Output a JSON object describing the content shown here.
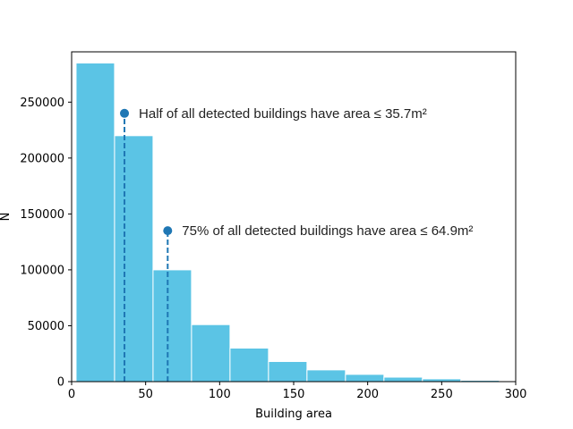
{
  "chart_data": {
    "type": "bar",
    "xlabel": "Building area",
    "ylabel": "N",
    "xlim": [
      0,
      300
    ],
    "ylim": [
      0,
      295000
    ],
    "bin_width": 26,
    "bins": [
      {
        "x0": 3,
        "x1": 29,
        "count": 285000
      },
      {
        "x0": 29,
        "x1": 55,
        "count": 220000
      },
      {
        "x0": 55,
        "x1": 81,
        "count": 100000
      },
      {
        "x0": 81,
        "x1": 107,
        "count": 51000
      },
      {
        "x0": 107,
        "x1": 133,
        "count": 30000
      },
      {
        "x0": 133,
        "x1": 159,
        "count": 18000
      },
      {
        "x0": 159,
        "x1": 185,
        "count": 10500
      },
      {
        "x0": 185,
        "x1": 211,
        "count": 6500
      },
      {
        "x0": 211,
        "x1": 237,
        "count": 4000
      },
      {
        "x0": 237,
        "x1": 263,
        "count": 2500
      },
      {
        "x0": 263,
        "x1": 289,
        "count": 1200
      },
      {
        "x0": 289,
        "x1": 315,
        "count": 600
      }
    ],
    "x_ticks": [
      0,
      50,
      100,
      150,
      200,
      250,
      300
    ],
    "y_ticks": [
      0,
      50000,
      100000,
      150000,
      200000,
      250000
    ],
    "annotations": [
      {
        "x": 35.7,
        "y": 240000,
        "text": "Half of all detected buildings have area ≤ 35.7m²"
      },
      {
        "x": 64.9,
        "y": 135000,
        "text": "75% of all detected buildings have area ≤ 64.9m²"
      }
    ],
    "bar_color": "#5bc4e5",
    "marker_color": "#1f77b4",
    "grid": false
  }
}
